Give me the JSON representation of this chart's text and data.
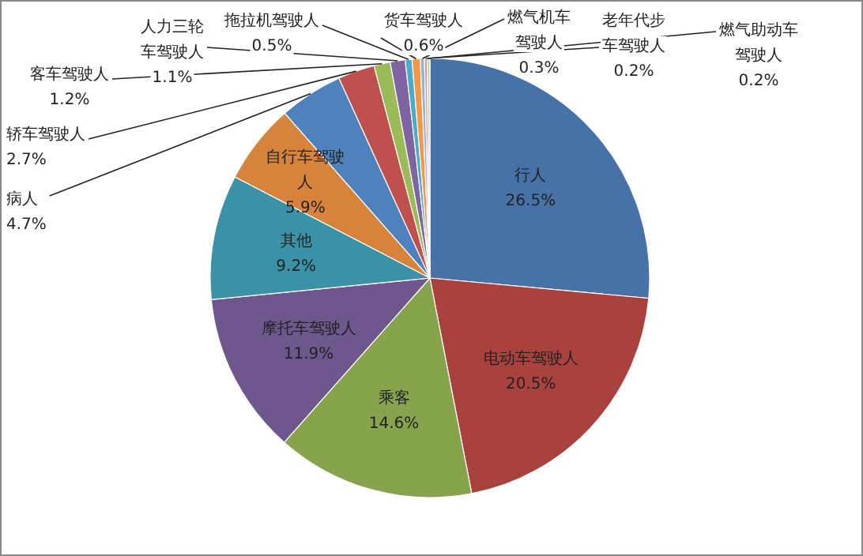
{
  "chart_data": {
    "type": "pie",
    "categories": [
      "行人",
      "电动车驾驶人",
      "乘客",
      "摩托车驾驶人",
      "其他",
      "自行车驾驶人",
      "病人",
      "轿车驾驶人",
      "客车驾驶人",
      "人力三轮车驾驶人",
      "拖拉机驾驶人",
      "货车驾驶人",
      "燃气机车驾驶人",
      "老年代步车驾驶人",
      "燃气助动车驾驶人"
    ],
    "values": [
      26.5,
      20.5,
      14.6,
      11.9,
      9.2,
      5.9,
      4.7,
      2.7,
      1.2,
      1.1,
      0.5,
      0.6,
      0.3,
      0.2,
      0.2
    ],
    "value_labels": [
      "26.5%",
      "20.5%",
      "14.6%",
      "11.9%",
      "9.2%",
      "5.9%",
      "4.7%",
      "2.7%",
      "1.2%",
      "1.1%",
      "0.5%",
      "0.6%",
      "0.3%",
      "0.2%",
      "0.2%"
    ],
    "colors": [
      "#4672a8",
      "#a9423f",
      "#87a34c",
      "#6e578d",
      "#3b91a6",
      "#d6833b",
      "#4f81bd",
      "#c0504d",
      "#9bbb59",
      "#8064a2",
      "#4bacc6",
      "#f79646",
      "#95b3d7",
      "#d99694",
      "#c3d69b"
    ]
  }
}
